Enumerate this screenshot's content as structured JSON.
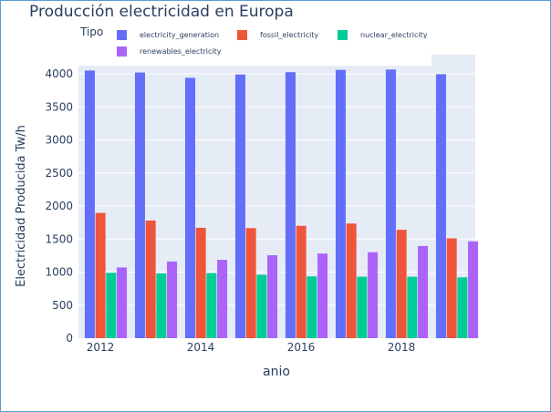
{
  "chart_data": {
    "type": "bar",
    "title": "Producción electricidad en Europa",
    "xlabel": "anio",
    "ylabel": "Electricidad Producida Tw/h",
    "legend_title": "Tipo",
    "legend_position": "top",
    "grid": true,
    "categories": [
      2012,
      2013,
      2014,
      2015,
      2016,
      2017,
      2018,
      2019
    ],
    "x_ticks": [
      "2012",
      "2014",
      "2016",
      "2018"
    ],
    "y_ticks": [
      "0",
      "500",
      "1000",
      "1500",
      "2000",
      "2500",
      "3000",
      "3500",
      "4000"
    ],
    "ylim": [
      0,
      4200
    ],
    "series": [
      {
        "name": "electricity_generation",
        "color": "#636efa",
        "values": [
          4050,
          4020,
          3940,
          3990,
          4025,
          4060,
          4065,
          3995
        ]
      },
      {
        "name": "fossil_electricity",
        "color": "#ef553b",
        "values": [
          1895,
          1780,
          1670,
          1665,
          1700,
          1735,
          1640,
          1510
        ]
      },
      {
        "name": "nuclear_electricity",
        "color": "#00cc96",
        "values": [
          990,
          980,
          985,
          960,
          935,
          930,
          930,
          920
        ]
      },
      {
        "name": "renewables_electricity",
        "color": "#ab63fa",
        "values": [
          1070,
          1160,
          1185,
          1255,
          1280,
          1300,
          1395,
          1465
        ]
      }
    ]
  }
}
